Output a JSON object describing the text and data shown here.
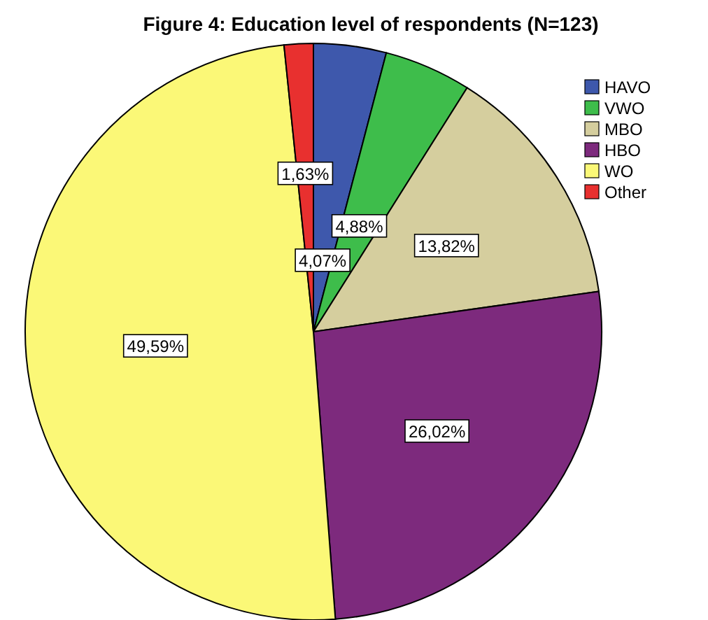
{
  "chart_data": {
    "type": "pie",
    "title": "Figure 4: Education level of respondents (N=123)",
    "categories": [
      "HAVO",
      "VWO",
      "MBO",
      "HBO",
      "WO",
      "Other"
    ],
    "values": [
      4.07,
      4.88,
      13.82,
      26.02,
      49.59,
      1.63
    ],
    "colors": [
      "#3e58ac",
      "#3ebd4b",
      "#d5ce9e",
      "#7d2a7d",
      "#fbf877",
      "#e8302f"
    ],
    "value_labels": [
      "4,07%",
      "4,88%",
      "13,82%",
      "26,02%",
      "49,59%",
      "1,63%"
    ],
    "legend": "top right"
  }
}
